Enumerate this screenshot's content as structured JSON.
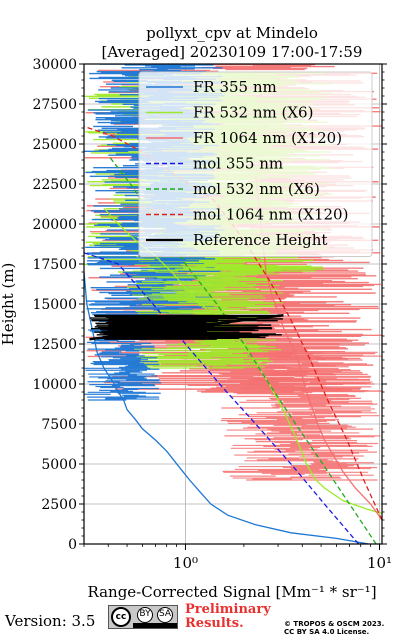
{
  "chart_data": {
    "type": "line",
    "title": "pollyxt_cpv at Mindelo",
    "subtitle": "[Averaged] 20230109 17:00-17:59",
    "xlabel": "Range-Corrected Signal [Mm⁻¹ * sr⁻¹]",
    "ylabel": "Height (m)",
    "xscale": "log",
    "xlim": [
      0.3,
      10.3
    ],
    "ylim": [
      0,
      30000
    ],
    "x_ticks": [
      1,
      10
    ],
    "x_tick_labels": [
      "10⁰",
      "10¹"
    ],
    "y_ticks": [
      0,
      2500,
      5000,
      7500,
      10000,
      12500,
      15000,
      17500,
      20000,
      22500,
      25000,
      27500,
      30000
    ],
    "y_tick_labels": [
      "0",
      "2500",
      "5000",
      "7500",
      "10000",
      "12500",
      "15000",
      "17500",
      "20000",
      "22500",
      "25000",
      "27500",
      "30000"
    ],
    "grid": true,
    "legend_position": "top-right",
    "series": [
      {
        "name": "FR 355 nm",
        "style": "solid",
        "color": "#1f77d4",
        "points": [
          [
            8.8,
            0
          ],
          [
            6.0,
            350
          ],
          [
            3.5,
            700
          ],
          [
            2.3,
            1200
          ],
          [
            1.65,
            1800
          ],
          [
            1.35,
            2500
          ],
          [
            1.2,
            3200
          ],
          [
            1.05,
            4000
          ],
          [
            0.93,
            4800
          ],
          [
            0.8,
            5800
          ],
          [
            0.7,
            6500
          ],
          [
            0.6,
            7200
          ],
          [
            0.55,
            7800
          ],
          [
            0.5,
            8400
          ],
          [
            0.48,
            9000
          ],
          [
            0.45,
            9500
          ],
          [
            0.43,
            10000
          ],
          [
            0.38,
            11000
          ],
          [
            0.35,
            12000
          ],
          [
            0.33,
            13500
          ],
          [
            0.31,
            15000
          ],
          [
            0.3,
            17000
          ]
        ]
      },
      {
        "name": "FR 532 nm (X6)",
        "style": "solid",
        "color": "#9eea2a",
        "points": [
          [
            10.3,
            1900
          ],
          [
            8.5,
            2200
          ],
          [
            6.5,
            2700
          ],
          [
            5.2,
            3500
          ],
          [
            4.7,
            4000
          ],
          [
            4.2,
            5000
          ],
          [
            3.9,
            6000
          ],
          [
            3.6,
            7000
          ],
          [
            3.3,
            8000
          ],
          [
            3.0,
            9000
          ],
          [
            2.7,
            10000
          ],
          [
            2.4,
            11000
          ],
          [
            2.1,
            12000
          ],
          [
            1.8,
            13000
          ],
          [
            1.5,
            14000
          ],
          [
            1.2,
            15000
          ],
          [
            1.0,
            16000
          ],
          [
            0.85,
            17000
          ],
          [
            0.7,
            18000
          ],
          [
            0.55,
            19000
          ],
          [
            0.45,
            20000
          ],
          [
            0.38,
            21000
          ]
        ]
      },
      {
        "name": "FR 1064 nm (X120)",
        "style": "solid",
        "color": "#f47070",
        "points": [
          [
            10.3,
            1500
          ],
          [
            9.0,
            2500
          ],
          [
            7.5,
            3500
          ],
          [
            6.5,
            4500
          ],
          [
            5.8,
            5500
          ],
          [
            5.2,
            6500
          ],
          [
            4.8,
            7500
          ],
          [
            4.5,
            8500
          ],
          [
            4.2,
            9500
          ],
          [
            4.0,
            10500
          ],
          [
            3.8,
            11500
          ],
          [
            3.5,
            12500
          ],
          [
            3.2,
            13500
          ],
          [
            3.0,
            14500
          ],
          [
            2.8,
            15500
          ],
          [
            2.6,
            17000
          ],
          [
            2.5,
            19000
          ],
          [
            2.4,
            21000
          ],
          [
            2.3,
            23000
          ]
        ]
      },
      {
        "name": "mol 355 nm",
        "style": "dashed",
        "color": "#1a1ae6",
        "points": [
          [
            7.8,
            0
          ],
          [
            5.2,
            2500
          ],
          [
            3.5,
            5000
          ],
          [
            2.3,
            7500
          ],
          [
            1.5,
            10000
          ],
          [
            1.0,
            12500
          ],
          [
            0.68,
            15000
          ],
          [
            0.45,
            17500
          ],
          [
            0.3,
            18200
          ]
        ]
      },
      {
        "name": "mol 532 nm (X6)",
        "style": "dashed",
        "color": "#22aa22",
        "points": [
          [
            9.6,
            0
          ],
          [
            7.0,
            2500
          ],
          [
            5.1,
            5000
          ],
          [
            3.7,
            7500
          ],
          [
            2.7,
            10000
          ],
          [
            2.0,
            12500
          ],
          [
            1.45,
            15000
          ],
          [
            1.0,
            17500
          ],
          [
            0.72,
            20000
          ],
          [
            0.52,
            22500
          ],
          [
            0.4,
            24300
          ]
        ]
      },
      {
        "name": "mol 1064 nm (X120)",
        "style": "dashed",
        "color": "#e02020",
        "points": [
          [
            10.3,
            1500
          ],
          [
            8.3,
            4000
          ],
          [
            6.8,
            6500
          ],
          [
            5.4,
            9000
          ],
          [
            4.4,
            11500
          ],
          [
            3.5,
            14000
          ],
          [
            2.7,
            16500
          ],
          [
            2.0,
            19000
          ],
          [
            1.4,
            21500
          ],
          [
            0.9,
            23000
          ],
          [
            0.6,
            24500
          ],
          [
            0.42,
            25500
          ],
          [
            0.3,
            26100
          ]
        ]
      },
      {
        "name": "Reference Height",
        "style": "solid",
        "color": "#000000",
        "points": [
          [
            0.32,
            12800
          ],
          [
            3.2,
            14300
          ]
        ]
      }
    ]
  },
  "footer": {
    "version": "Version: 3.5",
    "license_badge": {
      "cc": "cc",
      "by": "BY",
      "sa": "SA"
    },
    "preliminary_line1": "Preliminary",
    "preliminary_line2": "Results.",
    "copyright_line1": "© TROPOS & OSCM 2023.",
    "copyright_line2": "CC BY SA 4.0 License."
  }
}
